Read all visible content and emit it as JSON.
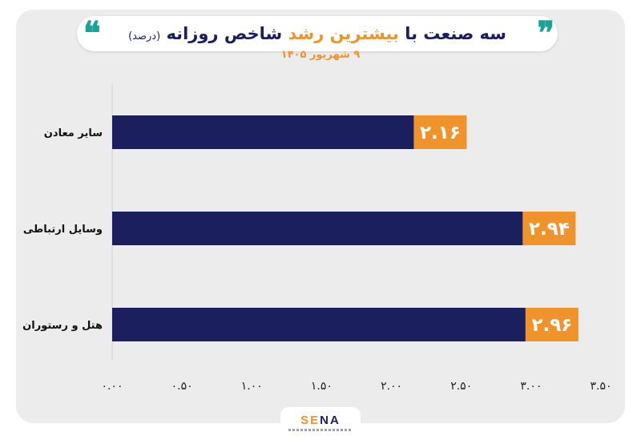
{
  "title": {
    "part1": "سه صنعت با ",
    "highlight": "بیشترین رشد",
    "part2": " شاخص روزانه ",
    "unit": "(درصد)"
  },
  "subtitle": "۹ شهریور ۱۴۰۵",
  "logo": {
    "orange": "SE",
    "navy": "NA"
  },
  "colors": {
    "bar": "#1b1f5e",
    "label_bg": "#f0932b",
    "accent": "#1aa39a",
    "card": "#ececec"
  },
  "chart_data": {
    "type": "bar",
    "orientation": "horizontal",
    "categories": [
      "سایر معادن",
      "وسایل ارتباطی",
      "هتل و رستوران"
    ],
    "values": [
      2.16,
      2.94,
      2.96
    ],
    "value_labels": [
      "۲.۱۶",
      "۲.۹۴",
      "۲.۹۶"
    ],
    "xlim": [
      0,
      3.5
    ],
    "ticks": [
      0,
      0.5,
      1,
      1.5,
      2,
      2.5,
      3,
      3.5
    ],
    "tick_labels": [
      "۰.۰۰",
      "۰.۵۰",
      "۱.۰۰",
      "۱.۵۰",
      "۲.۰۰",
      "۲.۵۰",
      "۳.۰۰",
      "۳.۵۰"
    ],
    "grid": false
  }
}
